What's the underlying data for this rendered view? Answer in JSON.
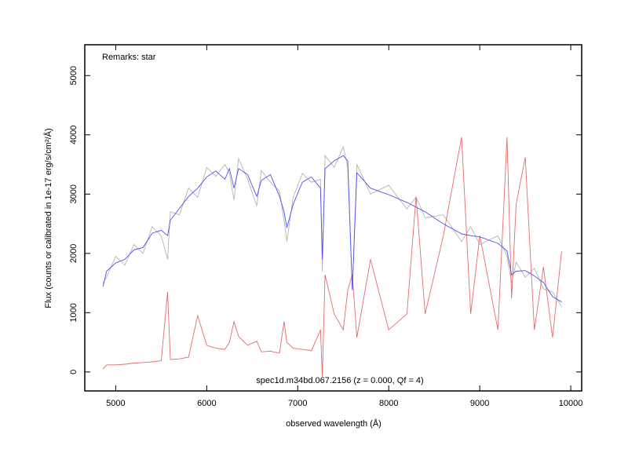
{
  "chart_data": {
    "type": "line",
    "annotations": {
      "remarks": "Remarks: star",
      "object": "spec1d.m34bd.067.2156 (z = 0.000, Qf = 4)"
    },
    "x_label": "observed wavelength (Å)",
    "y_label": "Flux (counts or calibrated in 1e-17 erg/s/cm²/Å)",
    "x": [
      4860,
      4900,
      5000,
      5100,
      5200,
      5300,
      5400,
      5500,
      5570,
      5600,
      5700,
      5800,
      5900,
      6000,
      6100,
      6200,
      6250,
      6300,
      6350,
      6450,
      6550,
      6600,
      6700,
      6800,
      6850,
      6880,
      6950,
      7050,
      7150,
      7250,
      7270,
      7300,
      7400,
      7500,
      7550,
      7600,
      7650,
      7800,
      8000,
      8200,
      8300,
      8400,
      8600,
      8800,
      8900,
      9000,
      9200,
      9300,
      9350,
      9400,
      9500,
      9600,
      9700,
      9800,
      9900
    ],
    "series": [
      {
        "color": "#b4b4b4",
        "values": [
          1500,
          1600,
          1950,
          1800,
          2150,
          2000,
          2450,
          2300,
          1900,
          2700,
          2650,
          3100,
          2950,
          3450,
          3300,
          3500,
          3350,
          2900,
          3600,
          3250,
          2800,
          3400,
          3200,
          3050,
          2550,
          2200,
          2950,
          3350,
          3200,
          3250,
          1700,
          3650,
          3450,
          3800,
          3450,
          1400,
          3500,
          3000,
          3150,
          2750,
          2950,
          2600,
          2650,
          2200,
          2450,
          2150,
          2300,
          1950,
          1500,
          1850,
          1600,
          1750,
          1400,
          1350,
          1100
        ]
      },
      {
        "color": "#e36b6b",
        "values": [
          50,
          120,
          120,
          130,
          150,
          160,
          170,
          190,
          1350,
          210,
          220,
          250,
          950,
          450,
          400,
          380,
          500,
          850,
          600,
          450,
          520,
          340,
          350,
          320,
          850,
          500,
          400,
          380,
          360,
          710,
          -80,
          1640,
          980,
          710,
          1380,
          1640,
          580,
          1900,
          710,
          980,
          2960,
          980,
          2300,
          3960,
          980,
          2300,
          710,
          3960,
          1240,
          2830,
          3620,
          710,
          1770,
          580,
          2040
        ]
      },
      {
        "color": "#5050ee",
        "values": [
          1440,
          1700,
          1840,
          1900,
          2060,
          2100,
          2340,
          2390,
          2300,
          2560,
          2760,
          2960,
          3100,
          3290,
          3390,
          3250,
          3430,
          3100,
          3430,
          3330,
          2960,
          3230,
          3330,
          2960,
          2700,
          2430,
          2830,
          3200,
          3290,
          3100,
          1900,
          3430,
          3560,
          3650,
          3560,
          1380,
          3360,
          3100,
          2990,
          2860,
          2780,
          2700,
          2500,
          2330,
          2300,
          2280,
          2170,
          2040,
          1640,
          1700,
          1710,
          1620,
          1510,
          1270,
          1180
        ]
      }
    ],
    "xlim": [
      4660,
      10120
    ],
    "ylim": [
      -320,
      5520
    ],
    "xticks": [
      5000,
      6000,
      7000,
      8000,
      9000,
      10000
    ],
    "yticks": [
      0,
      1000,
      2000,
      3000,
      4000,
      5000
    ]
  }
}
